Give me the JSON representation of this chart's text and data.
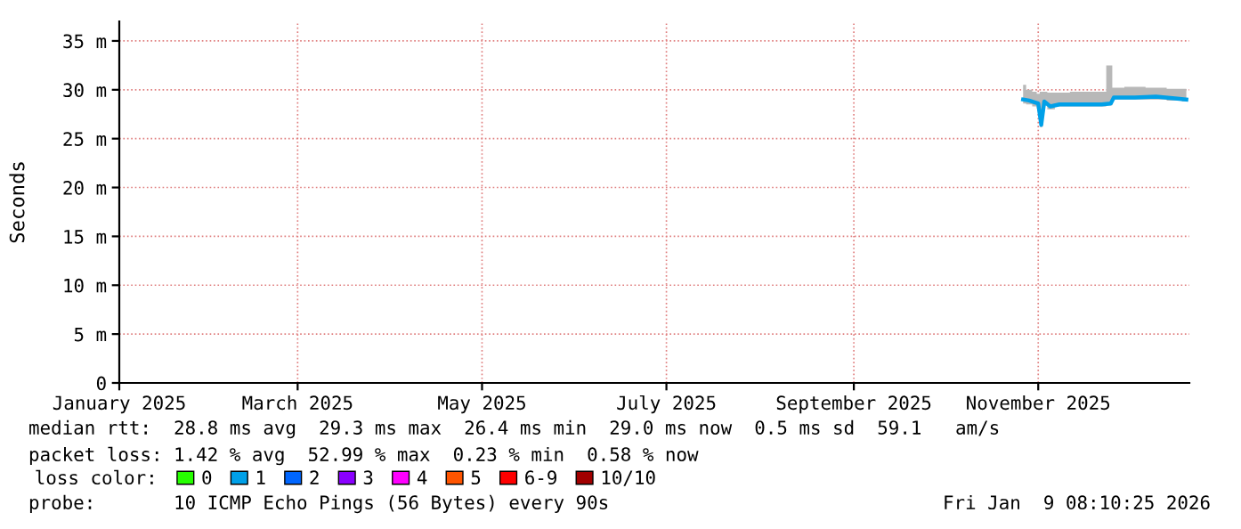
{
  "chart_data": {
    "type": "line",
    "ylabel": "Seconds",
    "x": [
      "2025-10-27",
      "2025-10-29",
      "2025-10-31",
      "2025-11-01",
      "2025-11-02",
      "2025-11-03",
      "2025-11-05",
      "2025-11-08",
      "2025-11-15",
      "2025-11-22",
      "2025-11-25",
      "2025-11-26",
      "2025-12-03",
      "2025-12-10",
      "2025-12-17",
      "2025-12-20"
    ],
    "series": [
      {
        "name": "0",
        "color": "#26ff00",
        "values": [
          null,
          null,
          null,
          null,
          null,
          null,
          null,
          null,
          null,
          null,
          null,
          null,
          null,
          null,
          null,
          null
        ]
      },
      {
        "name": "1",
        "color": "#00a0e8",
        "values": [
          29.0,
          28.9,
          28.7,
          28.6,
          26.4,
          28.8,
          28.3,
          28.5,
          28.5,
          28.5,
          28.6,
          29.2,
          29.2,
          29.3,
          29.1,
          29.0
        ],
        "lower": [
          28.6,
          28.5,
          28.3,
          28.1,
          26.2,
          28.4,
          28.0,
          28.3,
          28.3,
          28.3,
          28.4,
          29.0,
          29.0,
          29.0,
          28.9,
          28.8
        ],
        "upper": [
          30.5,
          30.0,
          29.8,
          29.6,
          29.8,
          29.8,
          29.7,
          29.7,
          29.8,
          29.8,
          32.5,
          30.2,
          30.3,
          30.2,
          30.1,
          30.1
        ]
      },
      {
        "name": "2",
        "color": "#0066ff",
        "values": [
          null,
          null,
          null,
          null,
          null,
          null,
          null,
          null,
          null,
          null,
          null,
          null,
          null,
          null,
          null,
          null
        ]
      },
      {
        "name": "3",
        "color": "#8a00ff",
        "values": [
          null,
          null,
          null,
          null,
          null,
          null,
          null,
          null,
          null,
          null,
          null,
          null,
          null,
          null,
          null,
          null
        ]
      },
      {
        "name": "4",
        "color": "#ff00ff",
        "values": [
          null,
          null,
          null,
          null,
          null,
          null,
          null,
          null,
          null,
          null,
          null,
          null,
          null,
          null,
          null,
          null
        ]
      },
      {
        "name": "5",
        "color": "#ff5500",
        "values": [
          null,
          null,
          null,
          null,
          null,
          null,
          null,
          null,
          null,
          null,
          null,
          null,
          null,
          null,
          null,
          null
        ]
      },
      {
        "name": "6-9",
        "color": "#ff0000",
        "values": [
          null,
          null,
          null,
          null,
          null,
          null,
          null,
          null,
          null,
          null,
          null,
          null,
          null,
          null,
          null,
          null
        ]
      },
      {
        "name": "10/10",
        "color": "#a10000",
        "values": [
          null,
          null,
          null,
          null,
          null,
          null,
          null,
          null,
          null,
          null,
          null,
          null,
          null,
          null,
          null,
          null
        ]
      }
    ],
    "xlim": [
      "2025-01-01",
      "2025-12-21"
    ],
    "xticks": [
      {
        "value": "2025-01-01",
        "label": "January 2025"
      },
      {
        "value": "2025-03-01",
        "label": "March 2025"
      },
      {
        "value": "2025-05-01",
        "label": "May 2025"
      },
      {
        "value": "2025-07-01",
        "label": "July 2025"
      },
      {
        "value": "2025-09-01",
        "label": "September 2025"
      },
      {
        "value": "2025-11-01",
        "label": "November 2025"
      }
    ],
    "ylim": [
      0,
      37
    ],
    "yticks": [
      0,
      {
        "value": 5,
        "label": "5 m"
      },
      {
        "value": 10,
        "label": "10 m"
      },
      {
        "value": 15,
        "label": "15 m"
      },
      {
        "value": 20,
        "label": "20 m"
      },
      {
        "value": 25,
        "label": "25 m"
      },
      {
        "value": 30,
        "label": "30 m"
      },
      {
        "value": 35,
        "label": "35 m"
      }
    ],
    "grid": true,
    "legend_title": "loss color:",
    "legend": "bottom",
    "annotations": [
      "median rtt:  28.8 ms avg  29.3 ms max  26.4 ms min  29.0 ms now  0.5 ms sd  59.1   am/s",
      "packet loss: 1.42 % avg  52.99 % max  0.23 % min  0.58 % now",
      "probe:       10 ICMP Echo Pings (56 Bytes) every 90s",
      "Fri Jan  9 08:10:25 2026"
    ]
  }
}
